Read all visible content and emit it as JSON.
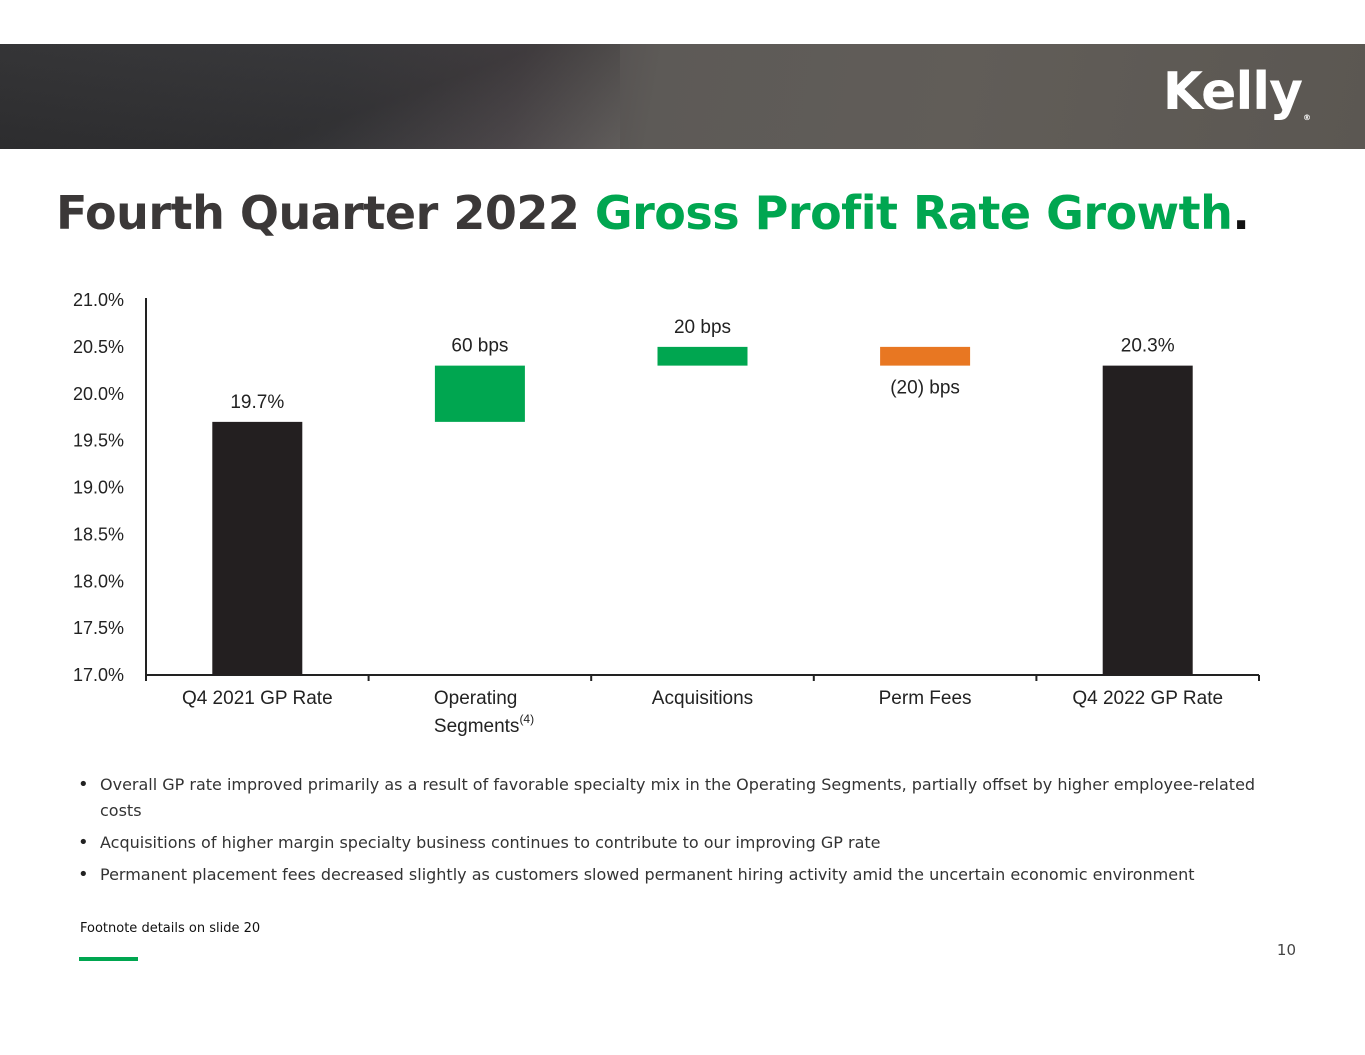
{
  "header": {
    "brand": "Kelly",
    "brand_mark": "®"
  },
  "slide": {
    "title_main": "Fourth Quarter 2022 ",
    "title_accent": "Gross Profit Rate Growth",
    "title_end": ".",
    "bullets": [
      "Overall GP rate improved primarily as a result of favorable specialty mix in the Operating Segments, partially offset by higher employee-related costs",
      "Acquisitions of higher margin specialty business continues to contribute to our improving GP rate",
      "Permanent placement fees decreased slightly as customers slowed permanent hiring activity amid the uncertain economic environment"
    ],
    "footnote": "Footnote details on slide 20",
    "page_number": "10"
  },
  "colors": {
    "accent": "#00a650",
    "total_bar": "#231f20",
    "increase_bar": "#00a650",
    "decrease_bar": "#e87722"
  },
  "chart_data": {
    "type": "bar",
    "subtype": "waterfall",
    "categories": [
      "Q4 2021 GP Rate",
      "Operating\nSegments",
      "Acquisitions",
      "Perm Fees",
      "Q4 2022 GP Rate"
    ],
    "category_superscripts": [
      "",
      "(4)",
      "",
      "",
      ""
    ],
    "bars": [
      {
        "kind": "total",
        "start": 17.0,
        "end": 19.7,
        "label": "19.7%"
      },
      {
        "kind": "increase",
        "start": 19.7,
        "end": 20.3,
        "label": "60 bps"
      },
      {
        "kind": "increase",
        "start": 20.3,
        "end": 20.5,
        "label": "20 bps"
      },
      {
        "kind": "decrease",
        "start": 20.5,
        "end": 20.3,
        "label": "(20) bps"
      },
      {
        "kind": "total",
        "start": 17.0,
        "end": 20.3,
        "label": "20.3%"
      }
    ],
    "yticks": [
      "17.0%",
      "17.5%",
      "18.0%",
      "18.5%",
      "19.0%",
      "19.5%",
      "20.0%",
      "20.5%",
      "21.0%"
    ],
    "ylim": [
      17.0,
      21.0
    ],
    "title": "",
    "xlabel": "",
    "ylabel": "",
    "grid": false,
    "legend": "none"
  }
}
